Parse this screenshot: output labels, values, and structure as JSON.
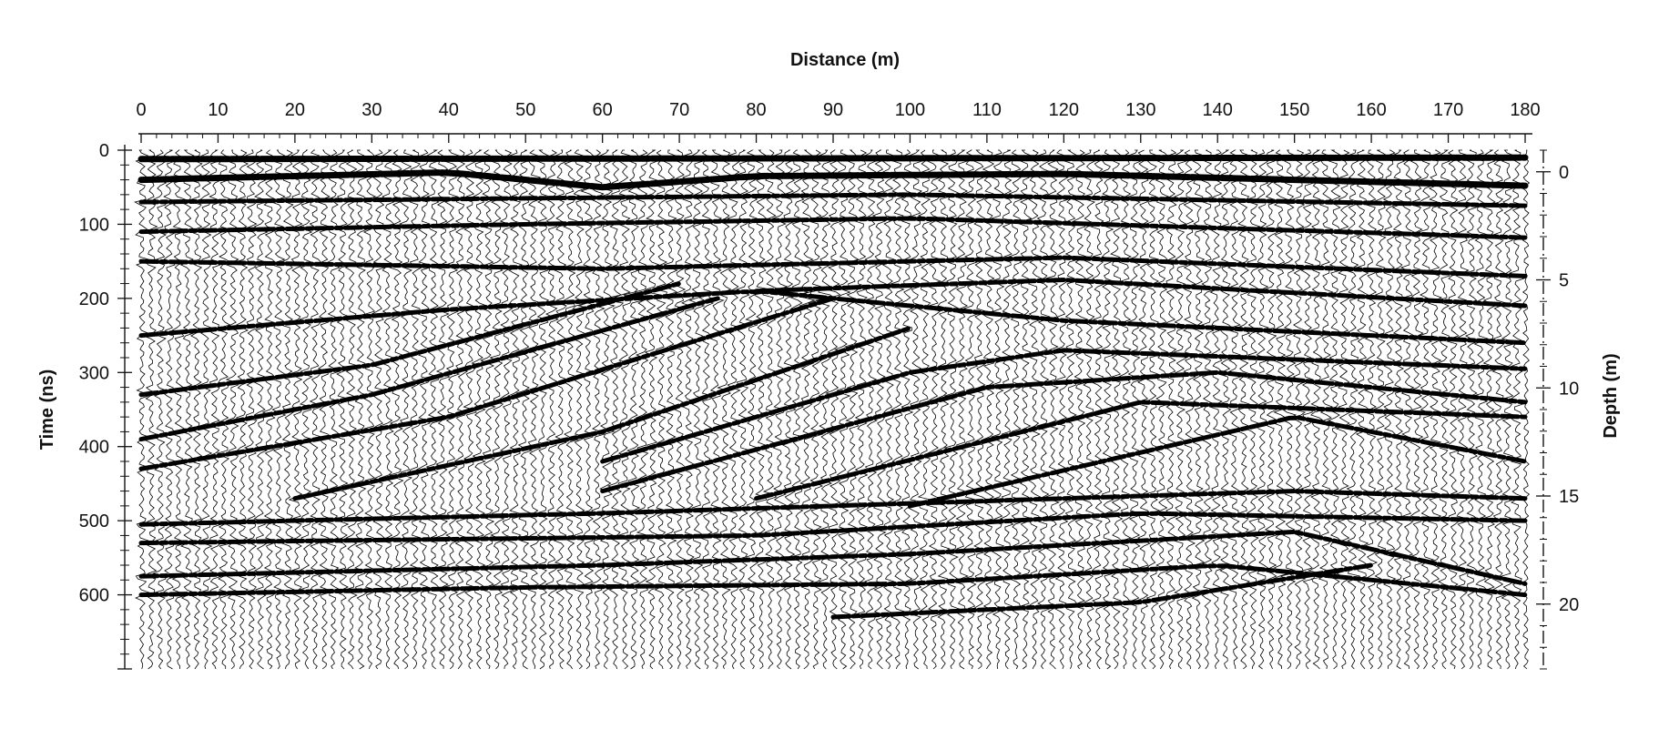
{
  "chart_data": {
    "type": "heatmap",
    "title": "",
    "xlabel": "Distance (m)",
    "ylabel": "Time (ns)",
    "y2label": "Depth (m)",
    "x_ticks": [
      0,
      10,
      20,
      30,
      40,
      50,
      60,
      70,
      80,
      90,
      100,
      110,
      120,
      130,
      140,
      150,
      160,
      170,
      180
    ],
    "y_ticks": [
      0,
      100,
      200,
      300,
      400,
      500,
      600
    ],
    "y2_ticks": [
      0,
      5,
      10,
      15,
      20
    ],
    "xlim": [
      0,
      180
    ],
    "ylim": [
      0,
      700
    ],
    "y2lim": [
      -1,
      23
    ],
    "colors": {
      "ink": "#000000",
      "background": "#ffffff"
    },
    "reflectors": [
      {
        "x": [
          0,
          180
        ],
        "y": [
          12,
          10
        ]
      },
      {
        "x": [
          0,
          40,
          60,
          80,
          120,
          180
        ],
        "y": [
          40,
          30,
          50,
          35,
          32,
          48
        ]
      },
      {
        "x": [
          0,
          50,
          100,
          180
        ],
        "y": [
          110,
          100,
          92,
          118
        ]
      },
      {
        "x": [
          0,
          60,
          120,
          180
        ],
        "y": [
          150,
          160,
          145,
          170
        ]
      },
      {
        "x": [
          0,
          30,
          70
        ],
        "y": [
          330,
          290,
          180
        ]
      },
      {
        "x": [
          0,
          30,
          75
        ],
        "y": [
          390,
          330,
          200
        ]
      },
      {
        "x": [
          0,
          40,
          90
        ],
        "y": [
          430,
          360,
          200
        ]
      },
      {
        "x": [
          20,
          60,
          100
        ],
        "y": [
          470,
          380,
          240
        ]
      },
      {
        "x": [
          60,
          100,
          120,
          180
        ],
        "y": [
          420,
          300,
          270,
          295
        ]
      },
      {
        "x": [
          60,
          110,
          140,
          180
        ],
        "y": [
          460,
          320,
          300,
          340
        ]
      },
      {
        "x": [
          80,
          130,
          180
        ],
        "y": [
          470,
          340,
          360
        ]
      },
      {
        "x": [
          100,
          150,
          180
        ],
        "y": [
          480,
          360,
          420
        ]
      },
      {
        "x": [
          0,
          60,
          120,
          150,
          180
        ],
        "y": [
          505,
          490,
          470,
          460,
          470
        ]
      },
      {
        "x": [
          0,
          80,
          130,
          180
        ],
        "y": [
          530,
          520,
          490,
          500
        ]
      },
      {
        "x": [
          0,
          60,
          100,
          150,
          180
        ],
        "y": [
          575,
          560,
          545,
          515,
          585
        ]
      },
      {
        "x": [
          0,
          50,
          100,
          140,
          180
        ],
        "y": [
          600,
          590,
          585,
          560,
          600
        ]
      },
      {
        "x": [
          90,
          130,
          160
        ],
        "y": [
          630,
          610,
          560
        ]
      },
      {
        "x": [
          0,
          40,
          80,
          120,
          180
        ],
        "y": [
          250,
          215,
          190,
          230,
          260
        ]
      },
      {
        "x": [
          80,
          120,
          180
        ],
        "y": [
          190,
          175,
          210
        ]
      },
      {
        "x": [
          0,
          50,
          100,
          180
        ],
        "y": [
          70,
          65,
          60,
          75
        ]
      }
    ]
  }
}
